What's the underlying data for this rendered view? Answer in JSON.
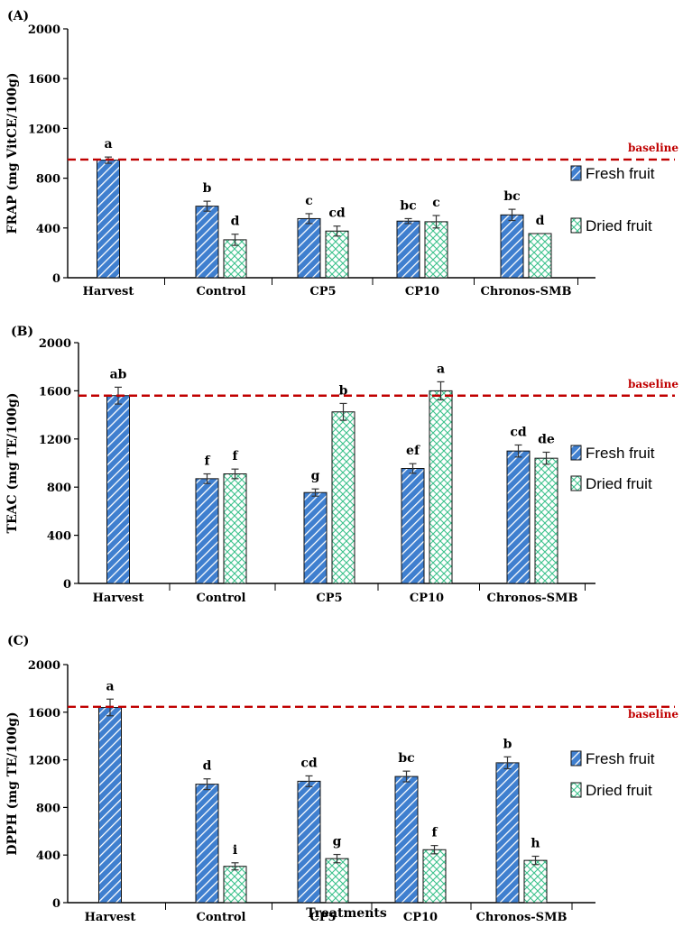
{
  "chart_data": [
    {
      "type": "bar",
      "panel_label": "(A)",
      "ylabel": "FRAP (mg VitCE/100g)",
      "xlabel": "",
      "ylim": [
        0,
        2000
      ],
      "yticks": [
        "0",
        "400",
        "800",
        "1200",
        "1600",
        "2000"
      ],
      "ytick_values": [
        0,
        400,
        800,
        1200,
        1600,
        2000
      ],
      "categories": [
        "Harvest",
        "Control",
        "CP5",
        "CP10",
        "Chronos-SMB"
      ],
      "series": [
        {
          "name": "Fresh fruit",
          "values": [
            945,
            575,
            475,
            455,
            505
          ],
          "errors": [
            25,
            40,
            40,
            20,
            45
          ],
          "letters": [
            "a",
            "b",
            "c",
            "bc",
            "bc"
          ]
        },
        {
          "name": "Dried fruit",
          "values": [
            null,
            305,
            375,
            450,
            355
          ],
          "errors": [
            null,
            45,
            40,
            50,
            null
          ],
          "letters": [
            "",
            "d",
            "cd",
            "c",
            "d"
          ]
        }
      ],
      "baseline": {
        "value": 950,
        "label": "baseline"
      },
      "legend": [
        "Fresh fruit",
        "Dried fruit"
      ]
    },
    {
      "type": "bar",
      "panel_label": "(B)",
      "ylabel": "TEAC (mg TE/100g)",
      "xlabel": "",
      "ylim": [
        0,
        2000
      ],
      "yticks": [
        "0",
        "400",
        "800",
        "1200",
        "1600",
        "2000"
      ],
      "ytick_values": [
        0,
        400,
        800,
        1200,
        1600,
        2000
      ],
      "categories": [
        "Harvest",
        "Control",
        "CP5",
        "CP10",
        "Chronos-SMB"
      ],
      "series": [
        {
          "name": "Fresh fruit",
          "values": [
            1560,
            870,
            755,
            955,
            1100
          ],
          "errors": [
            70,
            40,
            30,
            40,
            50
          ],
          "letters": [
            "ab",
            "f",
            "g",
            "ef",
            "cd"
          ]
        },
        {
          "name": "Dried fruit",
          "values": [
            null,
            910,
            1425,
            1600,
            1040
          ],
          "errors": [
            null,
            40,
            70,
            75,
            50
          ],
          "letters": [
            "",
            "f",
            "b",
            "a",
            "de"
          ]
        }
      ],
      "baseline": {
        "value": 1560,
        "label": "baseline"
      },
      "legend": [
        "Fresh fruit",
        "Dried fruit"
      ]
    },
    {
      "type": "bar",
      "panel_label": "(C)",
      "ylabel": "DPPH (mg TE/100g)",
      "xlabel": "Treatments",
      "ylim": [
        0,
        2000
      ],
      "yticks": [
        "0",
        "400",
        "800",
        "1200",
        "1600",
        "2000"
      ],
      "ytick_values": [
        0,
        400,
        800,
        1200,
        1600,
        2000
      ],
      "categories": [
        "Harvest",
        "Control",
        "CP5",
        "CP10",
        "Chronos-SMB"
      ],
      "series": [
        {
          "name": "Fresh fruit",
          "values": [
            1640,
            995,
            1020,
            1060,
            1175
          ],
          "errors": [
            70,
            45,
            45,
            45,
            50
          ],
          "letters": [
            "a",
            "d",
            "cd",
            "bc",
            "b"
          ]
        },
        {
          "name": "Dried fruit",
          "values": [
            null,
            305,
            370,
            445,
            355
          ],
          "errors": [
            null,
            30,
            35,
            35,
            35
          ],
          "letters": [
            "",
            "i",
            "g",
            "f",
            "h"
          ]
        }
      ],
      "baseline": {
        "value": 1645,
        "label": "baseline"
      },
      "legend": [
        "Fresh fruit",
        "Dried fruit"
      ]
    }
  ],
  "colors": {
    "fresh_fill": "#3f7fcf",
    "fresh_stripe": "#ffffff",
    "dried_fill": "#ffffff",
    "dried_stripe": "#3cc28c",
    "baseline": "#c00000",
    "axis": "#000000"
  }
}
